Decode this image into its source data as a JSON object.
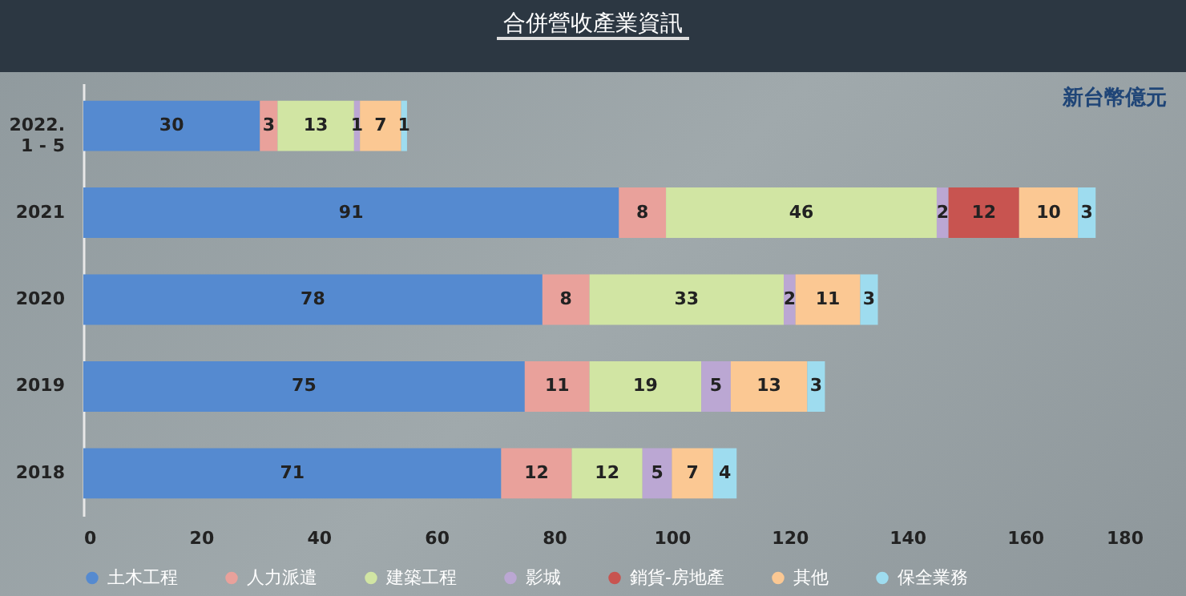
{
  "chart_data": {
    "type": "bar",
    "orientation": "horizontal",
    "stacked": true,
    "title": "合併營收產業資訊",
    "annotations": [
      "新台幣億元"
    ],
    "categories": [
      "2022.\n1 - 5",
      "2021",
      "2020",
      "2019",
      "2018"
    ],
    "series": [
      {
        "name": "土木工程",
        "color": "#558ad0",
        "values": [
          30,
          91,
          78,
          75,
          71
        ]
      },
      {
        "name": "人力派遣",
        "color": "#e9a19b",
        "values": [
          3,
          8,
          8,
          11,
          12
        ]
      },
      {
        "name": "建築工程",
        "color": "#d1e5a3",
        "values": [
          13,
          46,
          33,
          19,
          12
        ]
      },
      {
        "name": "影城",
        "color": "#bba7d3",
        "values": [
          1,
          2,
          2,
          5,
          5
        ]
      },
      {
        "name": "銷貨-房地產",
        "color": "#c85450",
        "values": [
          null,
          12,
          null,
          null,
          null
        ]
      },
      {
        "name": "其他",
        "color": "#fbc893",
        "values": [
          7,
          10,
          11,
          13,
          7
        ]
      },
      {
        "name": "保全業務",
        "color": "#9edcef",
        "values": [
          1,
          3,
          3,
          3,
          4
        ]
      }
    ],
    "xlim": [
      0,
      180
    ],
    "xticks": [
      0,
      20,
      40,
      60,
      80,
      100,
      120,
      140,
      160,
      180
    ],
    "data_labels": true,
    "legend": "bottom",
    "grid": false
  }
}
